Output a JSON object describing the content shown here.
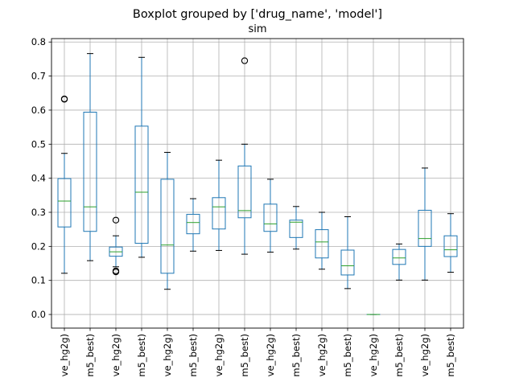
{
  "chart_data": {
    "type": "boxplot",
    "title": "Boxplot grouped by ['drug_name', 'model']",
    "subtitle": "sim",
    "ylim": [
      -0.04,
      0.81
    ],
    "yticks": [
      0.0,
      0.1,
      0.2,
      0.3,
      0.4,
      0.5,
      0.6,
      0.7,
      0.8
    ],
    "ytick_labels": [
      "0.0",
      "0.1",
      "0.2",
      "0.3",
      "0.4",
      "0.5",
      "0.6",
      "0.7",
      "0.8"
    ],
    "grid": true,
    "box_color": "#1f77b4",
    "median_color": "#2ca02c",
    "outlier_color": "#000000",
    "categories": [
      "ve_hg2g)",
      "m5_best)",
      "ve_hg2g)",
      "m5_best)",
      "ve_hg2g)",
      "m5_best)",
      "ve_hg2g)",
      "m5_best)",
      "ve_hg2g)",
      "m5_best)",
      "ve_hg2g)",
      "m5_best)",
      "ve_hg2g)",
      "m5_best)",
      "ve_hg2g)",
      "m5_best)"
    ],
    "boxes": [
      {
        "whislo": 0.121,
        "q1": 0.257,
        "med": 0.333,
        "q3": 0.399,
        "whishi": 0.473,
        "fliers": [
          0.633,
          0.632
        ]
      },
      {
        "whislo": 0.158,
        "q1": 0.244,
        "med": 0.316,
        "q3": 0.594,
        "whishi": 0.766,
        "fliers": []
      },
      {
        "whislo": 0.14,
        "q1": 0.171,
        "med": 0.184,
        "q3": 0.198,
        "whishi": 0.231,
        "fliers": [
          0.277,
          0.128,
          0.125
        ]
      },
      {
        "whislo": 0.168,
        "q1": 0.209,
        "med": 0.359,
        "q3": 0.553,
        "whishi": 0.755,
        "fliers": []
      },
      {
        "whislo": 0.074,
        "q1": 0.121,
        "med": 0.204,
        "q3": 0.397,
        "whishi": 0.476,
        "fliers": []
      },
      {
        "whislo": 0.186,
        "q1": 0.237,
        "med": 0.27,
        "q3": 0.294,
        "whishi": 0.34,
        "fliers": []
      },
      {
        "whislo": 0.188,
        "q1": 0.251,
        "med": 0.316,
        "q3": 0.343,
        "whishi": 0.453,
        "fliers": []
      },
      {
        "whislo": 0.177,
        "q1": 0.284,
        "med": 0.305,
        "q3": 0.436,
        "whishi": 0.5,
        "fliers": [
          0.745
        ]
      },
      {
        "whislo": 0.183,
        "q1": 0.244,
        "med": 0.266,
        "q3": 0.324,
        "whishi": 0.397,
        "fliers": []
      },
      {
        "whislo": 0.192,
        "q1": 0.226,
        "med": 0.271,
        "q3": 0.277,
        "whishi": 0.317,
        "fliers": []
      },
      {
        "whislo": 0.133,
        "q1": 0.166,
        "med": 0.213,
        "q3": 0.249,
        "whishi": 0.3,
        "fliers": []
      },
      {
        "whislo": 0.076,
        "q1": 0.116,
        "med": 0.143,
        "q3": 0.189,
        "whishi": 0.287,
        "fliers": []
      },
      {
        "whislo": 0.0,
        "q1": 0.0,
        "med": 0.0,
        "q3": 0.0,
        "whishi": 0.0,
        "fliers": []
      },
      {
        "whislo": 0.101,
        "q1": 0.147,
        "med": 0.166,
        "q3": 0.191,
        "whishi": 0.207,
        "fliers": []
      },
      {
        "whislo": 0.101,
        "q1": 0.2,
        "med": 0.223,
        "q3": 0.306,
        "whishi": 0.43,
        "fliers": []
      },
      {
        "whislo": 0.124,
        "q1": 0.17,
        "med": 0.19,
        "q3": 0.231,
        "whishi": 0.296,
        "fliers": []
      }
    ]
  }
}
